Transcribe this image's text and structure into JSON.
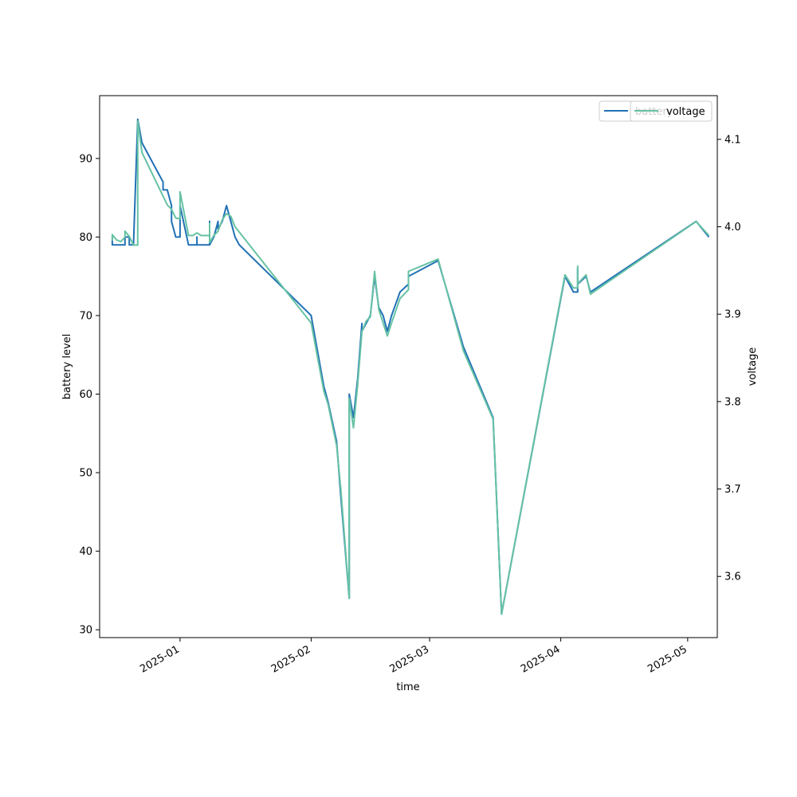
{
  "chart_data": {
    "type": "line",
    "xlabel": "time",
    "ylabel_left": "battery level",
    "ylabel_right": "voltage",
    "x_range": [
      "2024-12-13",
      "2025-05-08"
    ],
    "ylim_left": [
      29,
      98
    ],
    "ylim_right": [
      3.53,
      4.15
    ],
    "x_ticks": [
      "2025-01",
      "2025-02",
      "2025-03",
      "2025-04",
      "2025-05"
    ],
    "y_ticks_left": [
      30,
      40,
      50,
      60,
      70,
      80,
      90
    ],
    "y_ticks_right": [
      "3.6",
      "3.7",
      "3.8",
      "3.9",
      "4.0",
      "4.1"
    ],
    "grid": false,
    "legend_placement": "top-right",
    "colors": {
      "battery": "#2171b5",
      "voltage": "#66c2a4"
    },
    "series": [
      {
        "name": "battery",
        "axis": "left",
        "points": [
          [
            "2024-12-16",
            79
          ],
          [
            "2024-12-16",
            80
          ],
          [
            "2024-12-16",
            79
          ],
          [
            "2024-12-19",
            79
          ],
          [
            "2024-12-19",
            80
          ],
          [
            "2024-12-20",
            80
          ],
          [
            "2024-12-20",
            79
          ],
          [
            "2024-12-21",
            79
          ],
          [
            "2024-12-22",
            95
          ],
          [
            "2024-12-23",
            92
          ],
          [
            "2024-12-28",
            87
          ],
          [
            "2024-12-28",
            86
          ],
          [
            "2024-12-29",
            86
          ],
          [
            "2024-12-30",
            84
          ],
          [
            "2024-12-30",
            82
          ],
          [
            "2024-12-31",
            80
          ],
          [
            "2025-01-01",
            80
          ],
          [
            "2025-01-01",
            84
          ],
          [
            "2025-01-03",
            79
          ],
          [
            "2025-01-05",
            79
          ],
          [
            "2025-01-05",
            80
          ],
          [
            "2025-01-05",
            79
          ],
          [
            "2025-01-08",
            79
          ],
          [
            "2025-01-08",
            82
          ],
          [
            "2025-01-08",
            79
          ],
          [
            "2025-01-09",
            80
          ],
          [
            "2025-01-10",
            82
          ],
          [
            "2025-01-10",
            81
          ],
          [
            "2025-01-11",
            82
          ],
          [
            "2025-01-12",
            84
          ],
          [
            "2025-01-13",
            82
          ],
          [
            "2025-01-14",
            80
          ],
          [
            "2025-01-15",
            79
          ],
          [
            "2025-02-01",
            70
          ],
          [
            "2025-02-04",
            61
          ],
          [
            "2025-02-05",
            59
          ],
          [
            "2025-02-07",
            54
          ],
          [
            "2025-02-08",
            47
          ],
          [
            "2025-02-10",
            34
          ],
          [
            "2025-02-10",
            60
          ],
          [
            "2025-02-11",
            57
          ],
          [
            "2025-02-12",
            62
          ],
          [
            "2025-02-13",
            69
          ],
          [
            "2025-02-13",
            68
          ],
          [
            "2025-02-14",
            69
          ],
          [
            "2025-02-15",
            70
          ],
          [
            "2025-02-16",
            75
          ],
          [
            "2025-02-17",
            71
          ],
          [
            "2025-02-17",
            71
          ],
          [
            "2025-02-18",
            70
          ],
          [
            "2025-02-19",
            68
          ],
          [
            "2025-02-20",
            70
          ],
          [
            "2025-02-22",
            73
          ],
          [
            "2025-02-24",
            74
          ],
          [
            "2025-02-24",
            75
          ],
          [
            "2025-03-03",
            77
          ],
          [
            "2025-03-09",
            66
          ],
          [
            "2025-03-16",
            57
          ],
          [
            "2025-03-18",
            32
          ],
          [
            "2025-04-02",
            75
          ],
          [
            "2025-04-04",
            73
          ],
          [
            "2025-04-05",
            73
          ],
          [
            "2025-04-05",
            76
          ],
          [
            "2025-04-05",
            74
          ],
          [
            "2025-04-07",
            75
          ],
          [
            "2025-04-08",
            73
          ],
          [
            "2025-05-03",
            82
          ],
          [
            "2025-05-06",
            80
          ]
        ]
      },
      {
        "name": "voltage",
        "axis": "right",
        "points": [
          [
            "2024-12-16",
            3.984
          ],
          [
            "2024-12-16",
            3.991
          ],
          [
            "2024-12-17",
            3.985
          ],
          [
            "2024-12-18",
            3.983
          ],
          [
            "2024-12-19",
            3.988
          ],
          [
            "2024-12-19",
            3.995
          ],
          [
            "2024-12-20",
            3.989
          ],
          [
            "2024-12-21",
            3.979
          ],
          [
            "2024-12-22",
            3.979
          ],
          [
            "2024-12-22",
            4.121
          ],
          [
            "2024-12-23",
            4.085
          ],
          [
            "2024-12-28",
            4.035
          ],
          [
            "2024-12-29",
            4.025
          ],
          [
            "2024-12-30",
            4.02
          ],
          [
            "2024-12-31",
            4.01
          ],
          [
            "2025-01-01",
            4.009
          ],
          [
            "2025-01-01",
            4.04
          ],
          [
            "2025-01-03",
            3.99
          ],
          [
            "2025-01-04",
            3.99
          ],
          [
            "2025-01-05",
            3.993
          ],
          [
            "2025-01-06",
            3.99
          ],
          [
            "2025-01-08",
            3.99
          ],
          [
            "2025-01-08",
            4.004
          ],
          [
            "2025-01-08",
            3.982
          ],
          [
            "2025-01-09",
            3.99
          ],
          [
            "2025-01-10",
            3.995
          ],
          [
            "2025-01-11",
            4.008
          ],
          [
            "2025-01-12",
            4.015
          ],
          [
            "2025-01-13",
            4.012
          ],
          [
            "2025-01-14",
            4.0
          ],
          [
            "2025-02-01",
            3.89
          ],
          [
            "2025-02-04",
            3.812
          ],
          [
            "2025-02-05",
            3.797
          ],
          [
            "2025-02-07",
            3.75
          ],
          [
            "2025-02-08",
            3.7
          ],
          [
            "2025-02-10",
            3.575
          ],
          [
            "2025-02-10",
            3.804
          ],
          [
            "2025-02-11",
            3.77
          ],
          [
            "2025-02-12",
            3.82
          ],
          [
            "2025-02-13",
            3.88
          ],
          [
            "2025-02-14",
            3.892
          ],
          [
            "2025-02-15",
            3.897
          ],
          [
            "2025-02-16",
            3.949
          ],
          [
            "2025-02-17",
            3.905
          ],
          [
            "2025-02-17",
            3.905
          ],
          [
            "2025-02-18",
            3.89
          ],
          [
            "2025-02-19",
            3.875
          ],
          [
            "2025-02-20",
            3.89
          ],
          [
            "2025-02-22",
            3.918
          ],
          [
            "2025-02-24",
            3.928
          ],
          [
            "2025-02-24",
            3.949
          ],
          [
            "2025-03-03",
            3.963
          ],
          [
            "2025-03-09",
            3.858
          ],
          [
            "2025-03-16",
            3.78
          ],
          [
            "2025-03-18",
            3.557
          ],
          [
            "2025-04-02",
            3.945
          ],
          [
            "2025-04-04",
            3.93
          ],
          [
            "2025-04-05",
            3.93
          ],
          [
            "2025-04-05",
            3.955
          ],
          [
            "2025-04-05",
            3.935
          ],
          [
            "2025-04-07",
            3.945
          ],
          [
            "2025-04-08",
            3.923
          ],
          [
            "2025-05-03",
            4.006
          ],
          [
            "2025-05-06",
            3.99
          ]
        ]
      }
    ]
  }
}
